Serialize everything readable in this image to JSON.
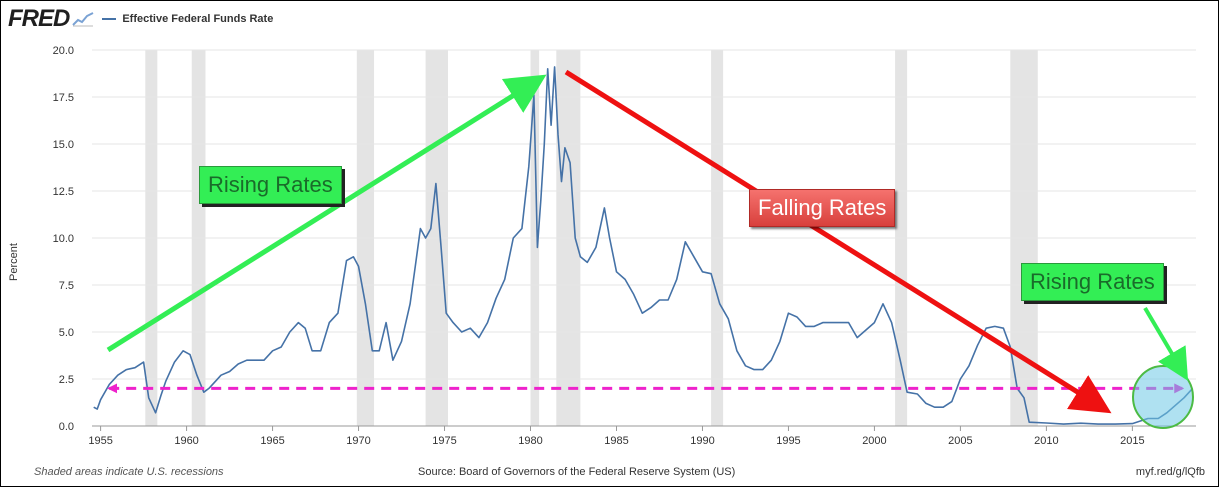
{
  "header": {
    "logo_text": "FRED",
    "logo_icon": "fred-chart-icon",
    "legend_label": "Effective Federal Funds Rate"
  },
  "footer": {
    "left": "Shaded areas indicate U.S. recessions",
    "source": "Source: Board of Governors of the Federal Reserve System (US)",
    "link": "myf.red/g/lQfb"
  },
  "annotations": {
    "rising_left": "Rising Rates",
    "falling": "Falling Rates",
    "rising_right": "Rising Rates"
  },
  "colors": {
    "series": "#4572a7",
    "recession": "#e4e4e4",
    "green_arrow": "#33ee55",
    "red_arrow": "#ee1111",
    "dash_line": "#ee22cc"
  },
  "chart_data": {
    "type": "line",
    "ylabel": "Percent",
    "xlim": [
      1954.5,
      2018.7
    ],
    "ylim": [
      0,
      20
    ],
    "yticks": [
      0.0,
      2.5,
      5.0,
      7.5,
      10.0,
      12.5,
      15.0,
      17.5,
      20.0
    ],
    "ytick_labels": [
      "0.0",
      "2.5",
      "5.0",
      "7.5",
      "10.0",
      "12.5",
      "15.0",
      "17.5",
      "20.0"
    ],
    "xticks": [
      1955,
      1960,
      1965,
      1970,
      1975,
      1980,
      1985,
      1990,
      1995,
      2000,
      2005,
      2010,
      2015
    ],
    "xtick_labels": [
      "1955",
      "1960",
      "1965",
      "1970",
      "1975",
      "1980",
      "1985",
      "1990",
      "1995",
      "2000",
      "2005",
      "2010",
      "2015"
    ],
    "grid": "horizontal",
    "recessions": [
      [
        1957.6,
        1958.3
      ],
      [
        1960.3,
        1961.1
      ],
      [
        1969.9,
        1970.9
      ],
      [
        1973.9,
        1975.2
      ],
      [
        1980.0,
        1980.5
      ],
      [
        1981.5,
        1982.9
      ],
      [
        1990.5,
        1991.2
      ],
      [
        2001.2,
        2001.9
      ],
      [
        2007.9,
        2009.5
      ]
    ],
    "series": [
      {
        "x": [
          1954.6,
          1954.8,
          1955.0,
          1955.5,
          1956.0,
          1956.5,
          1957.0,
          1957.5,
          1957.8,
          1958.2,
          1958.5,
          1958.8,
          1959.3,
          1959.8,
          1960.2,
          1960.6,
          1961.0,
          1961.3,
          1961.7,
          1962.0,
          1962.5,
          1963.0,
          1963.5,
          1964.0,
          1964.5,
          1965.0,
          1965.5,
          1966.0,
          1966.5,
          1966.9,
          1967.3,
          1967.8,
          1968.3,
          1968.8,
          1969.3,
          1969.7,
          1970.0,
          1970.4,
          1970.8,
          1971.2,
          1971.6,
          1972.0,
          1972.5,
          1973.0,
          1973.3,
          1973.6,
          1973.9,
          1974.2,
          1974.5,
          1974.8,
          1975.1,
          1975.5,
          1976.0,
          1976.5,
          1977.0,
          1977.5,
          1978.0,
          1978.5,
          1979.0,
          1979.5,
          1979.9,
          1980.2,
          1980.4,
          1980.6,
          1980.8,
          1981.0,
          1981.2,
          1981.4,
          1981.6,
          1981.8,
          1982.0,
          1982.3,
          1982.6,
          1982.9,
          1983.3,
          1983.8,
          1984.3,
          1984.6,
          1985.0,
          1985.5,
          1986.0,
          1986.5,
          1987.0,
          1987.5,
          1988.0,
          1988.5,
          1989.0,
          1989.5,
          1990.0,
          1990.5,
          1991.0,
          1991.5,
          1992.0,
          1992.5,
          1993.0,
          1993.5,
          1994.0,
          1994.5,
          1995.0,
          1995.5,
          1996.0,
          1996.5,
          1997.0,
          1997.5,
          1998.0,
          1998.5,
          1999.0,
          1999.5,
          2000.0,
          2000.5,
          2001.0,
          2001.5,
          2001.9,
          2002.5,
          2003.0,
          2003.5,
          2004.0,
          2004.5,
          2005.0,
          2005.5,
          2006.0,
          2006.5,
          2007.0,
          2007.5,
          2007.9,
          2008.3,
          2008.7,
          2009.0,
          2010.0,
          2011.0,
          2012.0,
          2013.0,
          2014.0,
          2015.0,
          2015.9,
          2016.5,
          2017.0,
          2017.5,
          2018.0,
          2018.5
        ],
        "y": [
          1.0,
          0.9,
          1.4,
          2.2,
          2.7,
          3.0,
          3.1,
          3.4,
          1.5,
          0.7,
          1.6,
          2.4,
          3.4,
          4.0,
          3.8,
          2.7,
          1.8,
          2.0,
          2.4,
          2.7,
          2.9,
          3.3,
          3.5,
          3.5,
          3.5,
          4.0,
          4.2,
          5.0,
          5.5,
          5.2,
          4.0,
          4.0,
          5.5,
          6.0,
          8.8,
          9.0,
          8.5,
          6.5,
          4.0,
          4.0,
          5.5,
          3.5,
          4.5,
          6.5,
          8.5,
          10.5,
          10.0,
          10.5,
          12.9,
          9.5,
          6.0,
          5.5,
          5.0,
          5.2,
          4.7,
          5.5,
          6.8,
          7.8,
          10.0,
          10.5,
          13.8,
          17.6,
          9.5,
          12.0,
          15.0,
          19.0,
          16.0,
          19.1,
          15.5,
          13.0,
          14.8,
          14.0,
          10.0,
          9.0,
          8.7,
          9.5,
          11.6,
          10.0,
          8.2,
          7.8,
          7.0,
          6.0,
          6.3,
          6.7,
          6.7,
          7.8,
          9.8,
          9.0,
          8.2,
          8.1,
          6.5,
          5.7,
          4.0,
          3.2,
          3.0,
          3.0,
          3.5,
          4.5,
          6.0,
          5.8,
          5.3,
          5.3,
          5.5,
          5.5,
          5.5,
          5.5,
          4.7,
          5.1,
          5.5,
          6.5,
          5.5,
          3.5,
          1.8,
          1.7,
          1.2,
          1.0,
          1.0,
          1.3,
          2.5,
          3.2,
          4.3,
          5.2,
          5.3,
          5.2,
          4.2,
          2.0,
          1.5,
          0.2,
          0.16,
          0.1,
          0.15,
          0.1,
          0.1,
          0.13,
          0.4,
          0.4,
          0.7,
          1.1,
          1.5,
          2.0
        ]
      }
    ],
    "reference_line": {
      "y": 2.0,
      "x": [
        1955.5,
        2017.9
      ]
    }
  }
}
